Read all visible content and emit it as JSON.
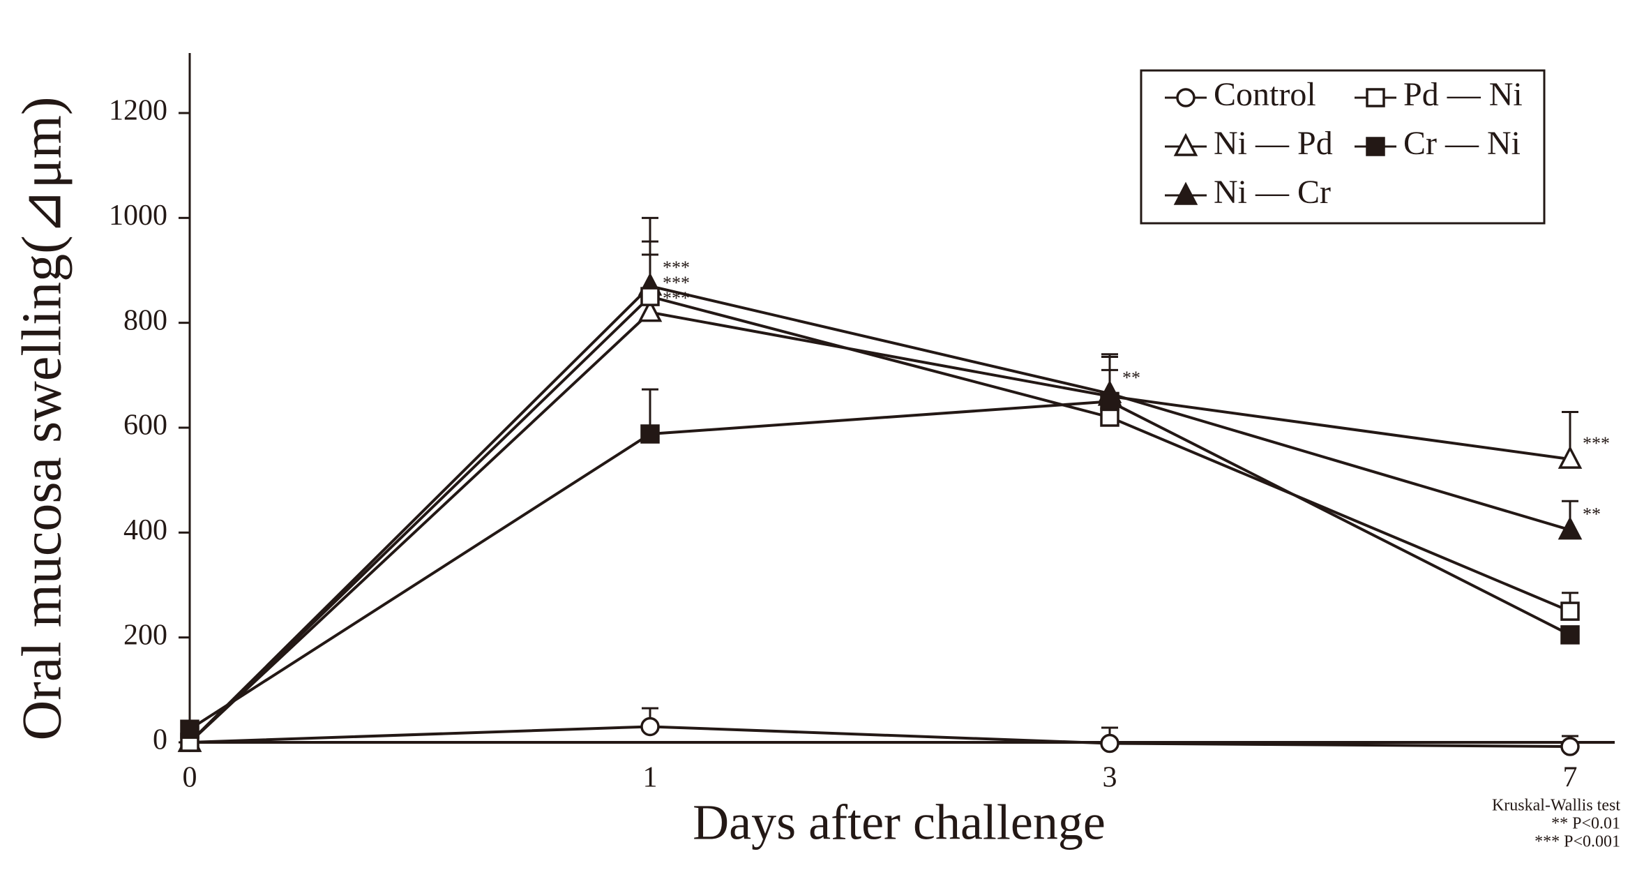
{
  "chart_data": {
    "type": "line",
    "x_label": "Days after challenge",
    "y_label": "Oral mucosa swelling(⊿μm)",
    "categories": [
      "0",
      "1",
      "3",
      "7"
    ],
    "ylim": [
      0,
      1310
    ],
    "yticks": [
      0,
      200,
      400,
      600,
      800,
      1000,
      1200
    ],
    "series": [
      {
        "name": "Control",
        "color": "#231815",
        "marker": "circle-open",
        "values": [
          0,
          30,
          -2,
          -8
        ],
        "errors": [
          0,
          35,
          30,
          20
        ]
      },
      {
        "name": "Ni — Pd",
        "color": "#231815",
        "marker": "triangle-open",
        "values": [
          0,
          820,
          660,
          540
        ],
        "errors": [
          0,
          110,
          50,
          90
        ]
      },
      {
        "name": "Ni — Cr",
        "color": "#231815",
        "marker": "triangle-filled",
        "values": [
          0,
          870,
          665,
          405
        ],
        "errors": [
          0,
          130,
          70,
          55
        ]
      },
      {
        "name": "Pd — Ni",
        "color": "#231815",
        "marker": "square-open",
        "values": [
          0,
          850,
          620,
          250
        ],
        "errors": [
          0,
          105,
          40,
          35
        ]
      },
      {
        "name": "Cr — Ni",
        "color": "#231815",
        "marker": "square-filled",
        "values": [
          25,
          588,
          650,
          205
        ],
        "errors": [
          0,
          85,
          90,
          0
        ]
      }
    ],
    "annotations": [
      {
        "text": "***",
        "series": 2,
        "index": 1
      },
      {
        "text": "***",
        "series": 3,
        "index": 1
      },
      {
        "text": "***",
        "series": 1,
        "index": 1
      },
      {
        "text": "**",
        "series": 2,
        "index": 2
      },
      {
        "text": "***",
        "series": 1,
        "index": 3
      },
      {
        "text": "**",
        "series": 2,
        "index": 3
      }
    ],
    "footnote": [
      "Kruskal-Wallis test",
      "** P<0.01",
      "*** P<0.001"
    ],
    "legend": "upper right"
  }
}
